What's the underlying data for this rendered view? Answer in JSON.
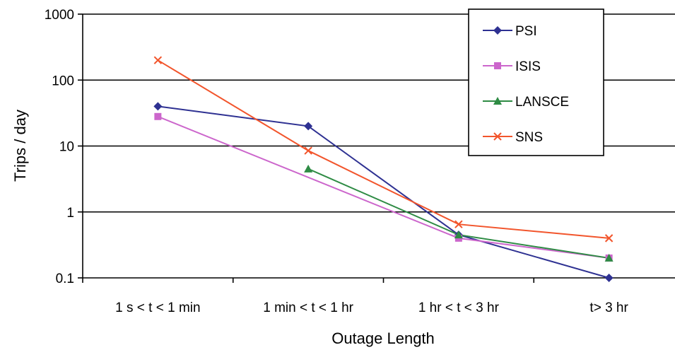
{
  "chart_data": {
    "type": "line",
    "xlabel": "Outage Length",
    "ylabel": "Trips / day",
    "yscale": "log",
    "ylim": [
      0.1,
      1000
    ],
    "yticks": [
      {
        "value": 0.1,
        "label": "0.1"
      },
      {
        "value": 1,
        "label": "1"
      },
      {
        "value": 10,
        "label": "10"
      },
      {
        "value": 100,
        "label": "100"
      },
      {
        "value": 1000,
        "label": "1000"
      }
    ],
    "categories": [
      "1 s < t < 1 min",
      "1 min < t < 1 hr",
      "1 hr < t < 3 hr",
      "t> 3 hr"
    ],
    "grid": "horizontal",
    "legend_position": "top-right",
    "series": [
      {
        "name": "PSI",
        "color": "#2E3192",
        "marker": "diamond",
        "values": [
          40,
          20,
          0.45,
          0.1
        ]
      },
      {
        "name": "ISIS",
        "color": "#CC66CC",
        "marker": "square",
        "values": [
          28,
          null,
          0.4,
          0.2
        ]
      },
      {
        "name": "LANSCE",
        "color": "#2E8B44",
        "marker": "triangle",
        "values": [
          null,
          4.5,
          0.45,
          0.2
        ]
      },
      {
        "name": "SNS",
        "color": "#F2552C",
        "marker": "x",
        "values": [
          200,
          8.5,
          0.65,
          0.4
        ]
      }
    ]
  }
}
